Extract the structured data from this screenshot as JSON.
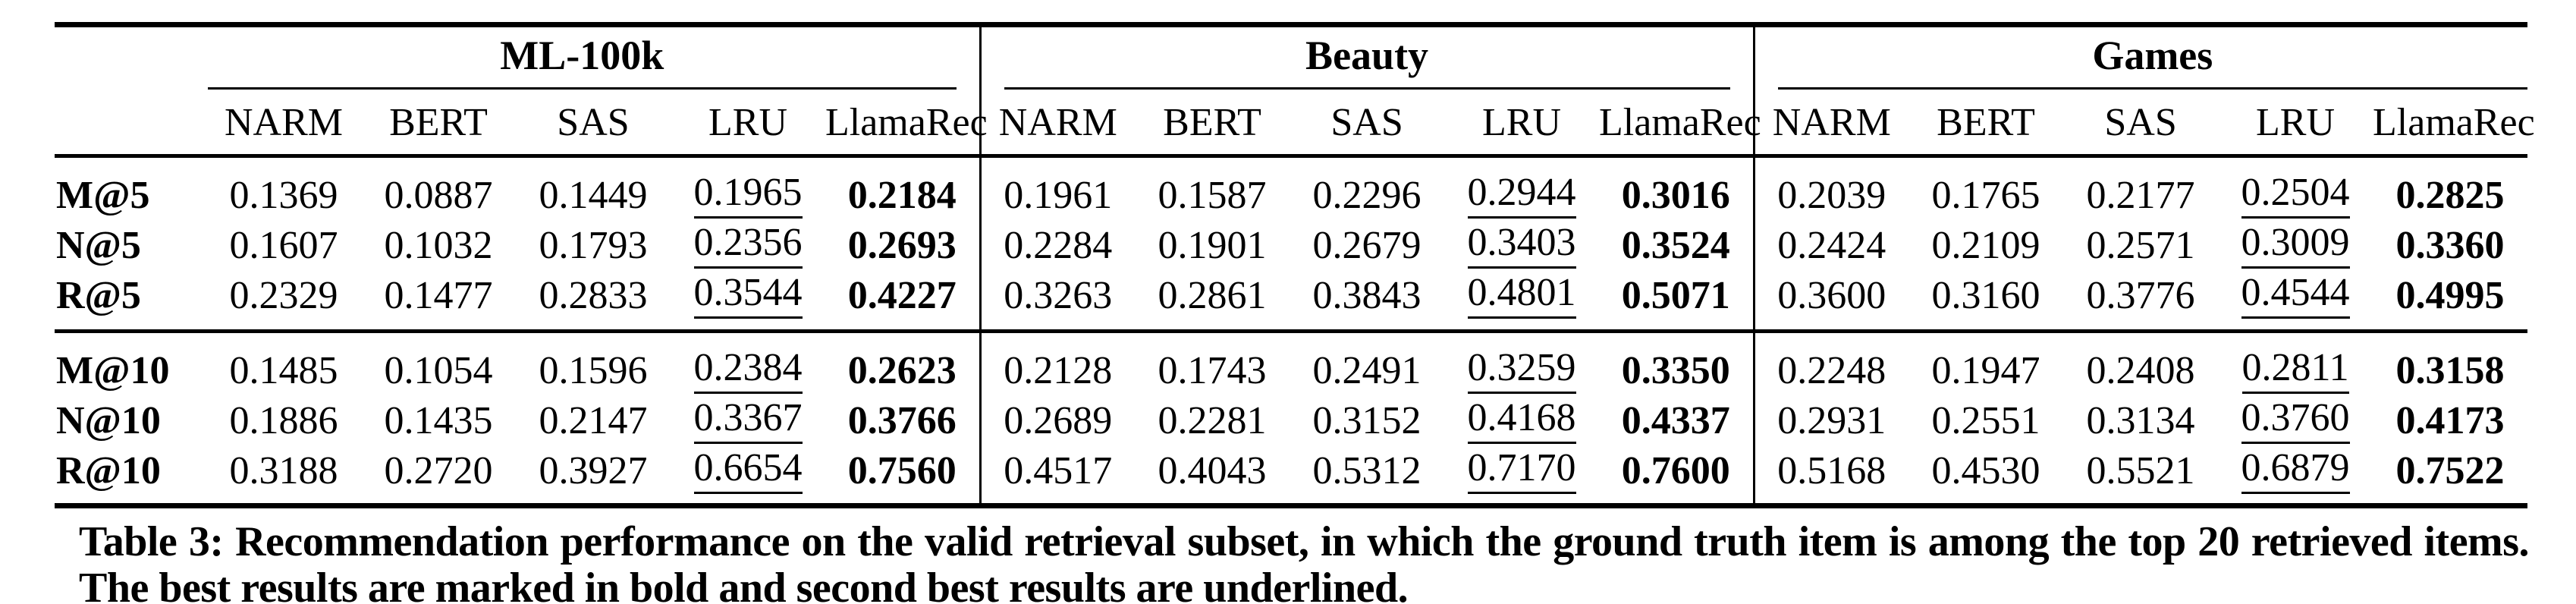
{
  "table": {
    "group_headers": [
      {
        "label": "ML-100k"
      },
      {
        "label": "Beauty"
      },
      {
        "label": "Games"
      }
    ],
    "column_headers": [
      "NARM",
      "BERT",
      "SAS",
      "LRU",
      "LlamaRec",
      "NARM",
      "BERT",
      "SAS",
      "LRU",
      "LlamaRec",
      "NARM",
      "BERT",
      "SAS",
      "LRU",
      "LlamaRec"
    ],
    "blocks": [
      {
        "rows": [
          {
            "label": "M@5",
            "values": [
              "0.1369",
              "0.0887",
              "0.1449",
              "0.1965",
              "0.2184",
              "0.1961",
              "0.1587",
              "0.2296",
              "0.2944",
              "0.3016",
              "0.2039",
              "0.1765",
              "0.2177",
              "0.2504",
              "0.2825"
            ]
          },
          {
            "label": "N@5",
            "values": [
              "0.1607",
              "0.1032",
              "0.1793",
              "0.2356",
              "0.2693",
              "0.2284",
              "0.1901",
              "0.2679",
              "0.3403",
              "0.3524",
              "0.2424",
              "0.2109",
              "0.2571",
              "0.3009",
              "0.3360"
            ]
          },
          {
            "label": "R@5",
            "values": [
              "0.2329",
              "0.1477",
              "0.2833",
              "0.3544",
              "0.4227",
              "0.3263",
              "0.2861",
              "0.3843",
              "0.4801",
              "0.5071",
              "0.3600",
              "0.3160",
              "0.3776",
              "0.4544",
              "0.4995"
            ]
          }
        ]
      },
      {
        "rows": [
          {
            "label": "M@10",
            "values": [
              "0.1485",
              "0.1054",
              "0.1596",
              "0.2384",
              "0.2623",
              "0.2128",
              "0.1743",
              "0.2491",
              "0.3259",
              "0.3350",
              "0.2248",
              "0.1947",
              "0.2408",
              "0.2811",
              "0.3158"
            ]
          },
          {
            "label": "N@10",
            "values": [
              "0.1886",
              "0.1435",
              "0.2147",
              "0.3367",
              "0.3766",
              "0.2689",
              "0.2281",
              "0.3152",
              "0.4168",
              "0.4337",
              "0.2931",
              "0.2551",
              "0.3134",
              "0.3760",
              "0.4173"
            ]
          },
          {
            "label": "R@10",
            "values": [
              "0.3188",
              "0.2720",
              "0.3927",
              "0.6654",
              "0.7560",
              "0.4517",
              "0.4043",
              "0.5312",
              "0.7170",
              "0.7600",
              "0.5168",
              "0.4530",
              "0.5521",
              "0.6879",
              "0.7522"
            ]
          }
        ]
      }
    ],
    "emphasis": {
      "best_column": "LlamaRec",
      "best_style": "bold",
      "second_best_column": "LRU",
      "second_best_style": "underline"
    }
  },
  "caption": "Table 3: Recommendation performance on the valid retrieval subset, in which the ground truth item is among the top 20 retrieved items. The best results are marked in bold and second best results are underlined."
}
